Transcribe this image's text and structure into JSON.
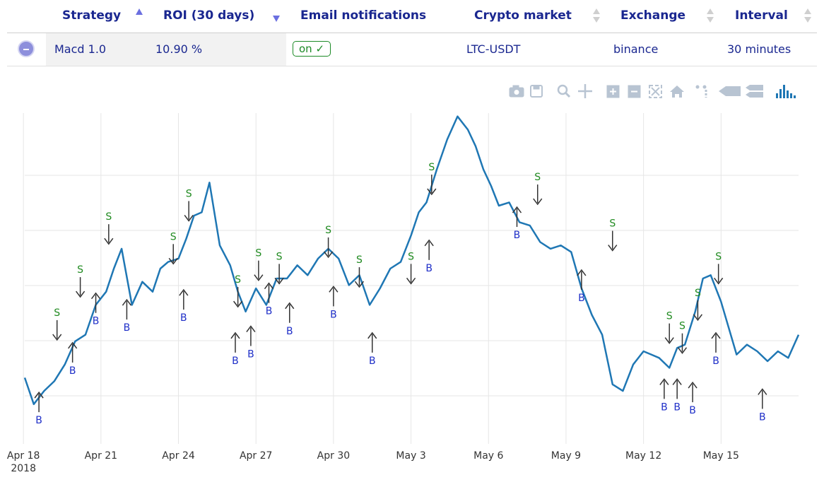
{
  "table": {
    "headers": {
      "strategy": "Strategy",
      "roi": "ROI (30 days)",
      "email": "Email notifications",
      "market": "Crypto market",
      "exchange": "Exchange",
      "interval": "Interval"
    },
    "row": {
      "strategy": "Macd 1.0",
      "roi": "10.90 %",
      "email": "on ✓",
      "market": "LTC-USDT",
      "exchange": "binance",
      "interval": "30 minutes"
    }
  },
  "toolbar_icons": [
    "camera-icon",
    "save-icon",
    "zoom-icon",
    "pan-icon",
    "zoom-in-icon",
    "zoom-out-icon",
    "autoscale-icon",
    "home-icon",
    "spike-lines-icon",
    "hover-closest-icon",
    "hover-compare-icon",
    "plotly-logo-icon"
  ],
  "chart_data": {
    "type": "line",
    "series_color": "#1f77b4",
    "x_tick_labels": [
      "Apr 18\n2018",
      "Apr 21",
      "Apr 24",
      "Apr 27",
      "Apr 30",
      "May 3",
      "May 6",
      "May 9",
      "May 12",
      "May 15"
    ],
    "x_ticks": [
      0,
      3,
      6,
      9,
      12,
      15,
      18,
      21,
      24,
      27
    ],
    "xlim": [
      0.05,
      30.0
    ],
    "ylim": [
      0,
      100
    ],
    "grid": true,
    "x": [
      0.05,
      0.4,
      0.8,
      1.2,
      1.6,
      2.0,
      2.4,
      2.8,
      3.2,
      3.5,
      3.8,
      4.2,
      4.6,
      5.0,
      5.3,
      5.6,
      6.0,
      6.3,
      6.6,
      6.9,
      7.2,
      7.6,
      8.0,
      8.3,
      8.6,
      9.0,
      9.4,
      9.8,
      10.2,
      10.6,
      11.0,
      11.4,
      11.8,
      12.2,
      12.6,
      13.0,
      13.4,
      13.8,
      14.2,
      14.6,
      15.0,
      15.3,
      15.6,
      16.0,
      16.4,
      16.8,
      17.2,
      17.5,
      17.8,
      18.1,
      18.4,
      18.8,
      19.2,
      19.6,
      20.0,
      20.4,
      20.8,
      21.2,
      21.6,
      22.0,
      22.4,
      22.8,
      23.2,
      23.6,
      24.0,
      24.3,
      24.6,
      25.0,
      25.3,
      25.6,
      26.0,
      26.3,
      26.6,
      27.0,
      27.3,
      27.6,
      28.0,
      28.4,
      28.8,
      29.2,
      29.6,
      30.0
    ],
    "y": [
      20,
      12,
      16,
      19,
      24,
      31,
      33,
      42,
      46,
      53,
      59,
      42,
      49,
      46,
      53,
      55,
      56,
      62,
      69,
      70,
      79,
      60,
      54,
      46,
      40,
      47,
      42,
      50,
      50,
      54,
      51,
      56,
      59,
      56,
      48,
      51,
      42,
      47,
      53,
      55,
      63,
      70,
      73,
      83,
      92,
      99,
      95,
      90,
      83,
      78,
      72,
      73,
      67,
      66,
      61,
      59,
      60,
      58,
      47,
      39,
      33,
      18,
      16,
      24,
      28,
      27,
      26,
      23,
      29,
      30,
      40,
      50,
      51,
      43,
      35,
      27,
      30,
      28,
      25,
      28,
      26,
      33
    ]
  },
  "signals": [
    {
      "type": "B",
      "x": 0.6,
      "y": 16
    },
    {
      "type": "S",
      "x": 1.3,
      "y": 31
    },
    {
      "type": "B",
      "x": 1.9,
      "y": 31
    },
    {
      "type": "S",
      "x": 2.2,
      "y": 44
    },
    {
      "type": "B",
      "x": 2.8,
      "y": 46
    },
    {
      "type": "S",
      "x": 3.3,
      "y": 60
    },
    {
      "type": "B",
      "x": 4.0,
      "y": 44
    },
    {
      "type": "S",
      "x": 5.8,
      "y": 54
    },
    {
      "type": "B",
      "x": 6.2,
      "y": 47
    },
    {
      "type": "S",
      "x": 6.4,
      "y": 67
    },
    {
      "type": "B",
      "x": 8.2,
      "y": 34
    },
    {
      "type": "S",
      "x": 8.3,
      "y": 41
    },
    {
      "type": "B",
      "x": 8.8,
      "y": 36
    },
    {
      "type": "S",
      "x": 9.1,
      "y": 49
    },
    {
      "type": "B",
      "x": 9.5,
      "y": 49
    },
    {
      "type": "S",
      "x": 9.9,
      "y": 48
    },
    {
      "type": "B",
      "x": 10.3,
      "y": 43
    },
    {
      "type": "S",
      "x": 11.8,
      "y": 56
    },
    {
      "type": "B",
      "x": 12.0,
      "y": 48
    },
    {
      "type": "S",
      "x": 13.0,
      "y": 47
    },
    {
      "type": "B",
      "x": 13.5,
      "y": 34
    },
    {
      "type": "S",
      "x": 15.0,
      "y": 48
    },
    {
      "type": "B",
      "x": 15.7,
      "y": 62
    },
    {
      "type": "S",
      "x": 15.8,
      "y": 75
    },
    {
      "type": "B",
      "x": 19.1,
      "y": 72
    },
    {
      "type": "S",
      "x": 19.9,
      "y": 72
    },
    {
      "type": "B",
      "x": 21.6,
      "y": 53
    },
    {
      "type": "S",
      "x": 22.8,
      "y": 58
    },
    {
      "type": "B",
      "x": 24.8,
      "y": 20
    },
    {
      "type": "S",
      "x": 25.0,
      "y": 30
    },
    {
      "type": "B",
      "x": 25.3,
      "y": 20
    },
    {
      "type": "S",
      "x": 25.5,
      "y": 27
    },
    {
      "type": "B",
      "x": 25.9,
      "y": 19
    },
    {
      "type": "S",
      "x": 26.1,
      "y": 37
    },
    {
      "type": "B",
      "x": 26.8,
      "y": 34
    },
    {
      "type": "S",
      "x": 26.9,
      "y": 48
    },
    {
      "type": "B",
      "x": 28.6,
      "y": 17
    }
  ]
}
